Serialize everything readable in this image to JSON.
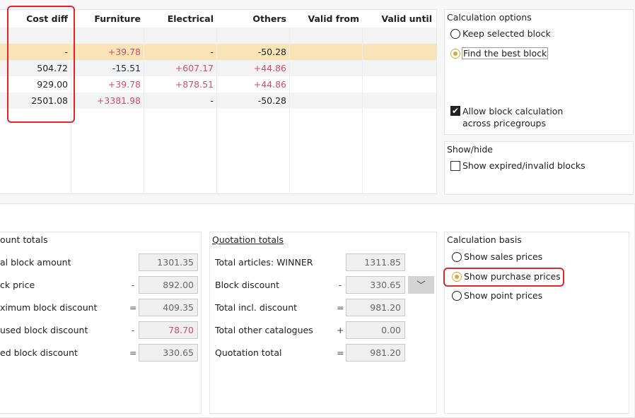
{
  "table": {
    "columns": [
      "Cost diff",
      "Furniture",
      "Electrical",
      "Others",
      "Valid from",
      "Valid until"
    ],
    "rows": [
      {
        "cells": [
          "",
          "",
          "",
          "",
          "",
          ""
        ],
        "highlighted": false
      },
      {
        "cells": [
          "-",
          "+39.78",
          "-",
          "-50.28",
          "",
          ""
        ],
        "highlighted": true
      },
      {
        "cells": [
          "504.72",
          "-15.51",
          "+607.17",
          "+44.86",
          "",
          ""
        ],
        "highlighted": false
      },
      {
        "cells": [
          "929.00",
          "+39.78",
          "+878.51",
          "+44.86",
          "",
          ""
        ],
        "highlighted": false
      },
      {
        "cells": [
          "2501.08",
          "+3381.98",
          "-",
          "-50.28",
          "",
          ""
        ],
        "highlighted": false
      }
    ],
    "highlight_color": "#f8e4b6"
  },
  "calc_options": {
    "title": "Calculation options",
    "keep": "Keep selected block",
    "best": "Find the best block",
    "selected": "best",
    "allow_line1": "Allow block calculation",
    "allow_line2": "across pricegroups",
    "allow_checked": true
  },
  "show_hide": {
    "title": "Show/hide",
    "expired": "Show expired/invalid blocks",
    "expired_checked": false
  },
  "account": {
    "title": "ount totals",
    "rows": [
      {
        "label": "al block amount",
        "op": "",
        "value": "1301.35"
      },
      {
        "label": "ck price",
        "op": "-",
        "value": "892.00"
      },
      {
        "label": "ximum block discount",
        "op": "=",
        "value": "409.35"
      },
      {
        "label": "used block discount",
        "op": "-",
        "value": "78.70",
        "red": true
      },
      {
        "label": "ed block discount",
        "op": "=",
        "value": "330.65"
      }
    ]
  },
  "quotation": {
    "title": "Quotation totals",
    "rows": [
      {
        "label": "Total articles: WINNER",
        "op": "",
        "value": "1311.85"
      },
      {
        "label": "Block discount",
        "op": "-",
        "value": "330.65"
      },
      {
        "label": "Total incl. discount",
        "op": "=",
        "value": "981.20"
      },
      {
        "label": "Total other catalogues",
        "op": "+",
        "value": "0.00"
      },
      {
        "label": "Quotation total",
        "op": "=",
        "value": "981.20"
      }
    ]
  },
  "calc_basis": {
    "title": "Calculation basis",
    "sales": "Show sales prices",
    "purchase": "Show purchase prices",
    "point": "Show point prices",
    "selected": "purchase"
  }
}
